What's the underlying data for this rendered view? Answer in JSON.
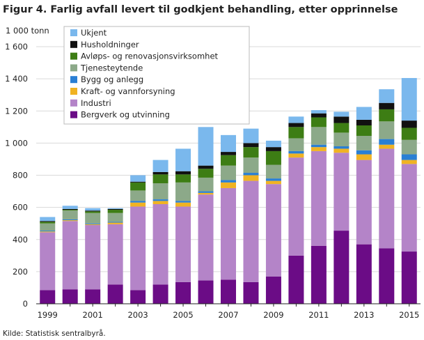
{
  "chart_data": {
    "type": "bar",
    "stacked": true,
    "title": "Figur 4. Farlig avfall levert til godkjent behandling, etter opprinnelse",
    "ylabel": "1 000 tonn",
    "xlabel": "",
    "source": "Kilde: Statistisk sentralbyrå.",
    "ylim": [
      0,
      1600
    ],
    "yticks": [
      0,
      200,
      400,
      600,
      800,
      1000,
      1200,
      1400,
      1600
    ],
    "ytick_labels": [
      "0",
      "200",
      "400",
      "600",
      "800",
      "1 000",
      "1 200",
      "1 400",
      "1 600"
    ],
    "categories": [
      "1999",
      "2000",
      "2001",
      "2002",
      "2003",
      "2004",
      "2005",
      "2006",
      "2007",
      "2008",
      "2009",
      "2010",
      "2011",
      "2012",
      "2013",
      "2014",
      "2015"
    ],
    "xtick_labels": [
      "1999",
      "",
      "2001",
      "",
      "2003",
      "",
      "2005",
      "",
      "2007",
      "",
      "2009",
      "",
      "2011",
      "",
      "2013",
      "",
      "2015"
    ],
    "grid": "horizontal",
    "legend_position": "top-left",
    "series": [
      {
        "name": "Bergverk og utvinning",
        "color": "#6b0c86",
        "values": [
          85,
          90,
          90,
          120,
          85,
          120,
          135,
          145,
          150,
          135,
          170,
          300,
          360,
          455,
          370,
          345,
          325
        ]
      },
      {
        "name": "Industri",
        "color": "#b484c8",
        "values": [
          360,
          425,
          400,
          375,
          520,
          500,
          470,
          535,
          570,
          630,
          575,
          610,
          590,
          485,
          525,
          620,
          545
        ]
      },
      {
        "name": "Kraft- og vannforsyning",
        "color": "#f0b323",
        "values": [
          5,
          5,
          5,
          10,
          25,
          20,
          25,
          10,
          35,
          35,
          20,
          25,
          25,
          25,
          35,
          25,
          25
        ]
      },
      {
        "name": "Bygg og anlegg",
        "color": "#2a7fd4",
        "values": [
          5,
          5,
          5,
          5,
          10,
          10,
          10,
          10,
          15,
          15,
          15,
          15,
          15,
          15,
          25,
          35,
          35
        ]
      },
      {
        "name": "Tjenesteytende",
        "color": "#8ca989",
        "values": [
          45,
          55,
          65,
          55,
          65,
          100,
          115,
          85,
          90,
          95,
          85,
          80,
          110,
          85,
          90,
          110,
          90
        ]
      },
      {
        "name": "Avløps- og renovasjonsvirksomhet",
        "color": "#3d7d14",
        "values": [
          10,
          5,
          10,
          20,
          50,
          55,
          50,
          55,
          65,
          65,
          85,
          70,
          60,
          60,
          65,
          75,
          75
        ]
      },
      {
        "name": "Husholdninger",
        "color": "#111111",
        "values": [
          5,
          5,
          5,
          5,
          5,
          15,
          20,
          20,
          20,
          25,
          25,
          25,
          25,
          40,
          35,
          40,
          45
        ]
      },
      {
        "name": "Ukjent",
        "color": "#7ab8ed",
        "values": [
          25,
          20,
          15,
          5,
          40,
          75,
          140,
          240,
          105,
          90,
          40,
          40,
          20,
          30,
          80,
          85,
          265
        ]
      }
    ]
  }
}
